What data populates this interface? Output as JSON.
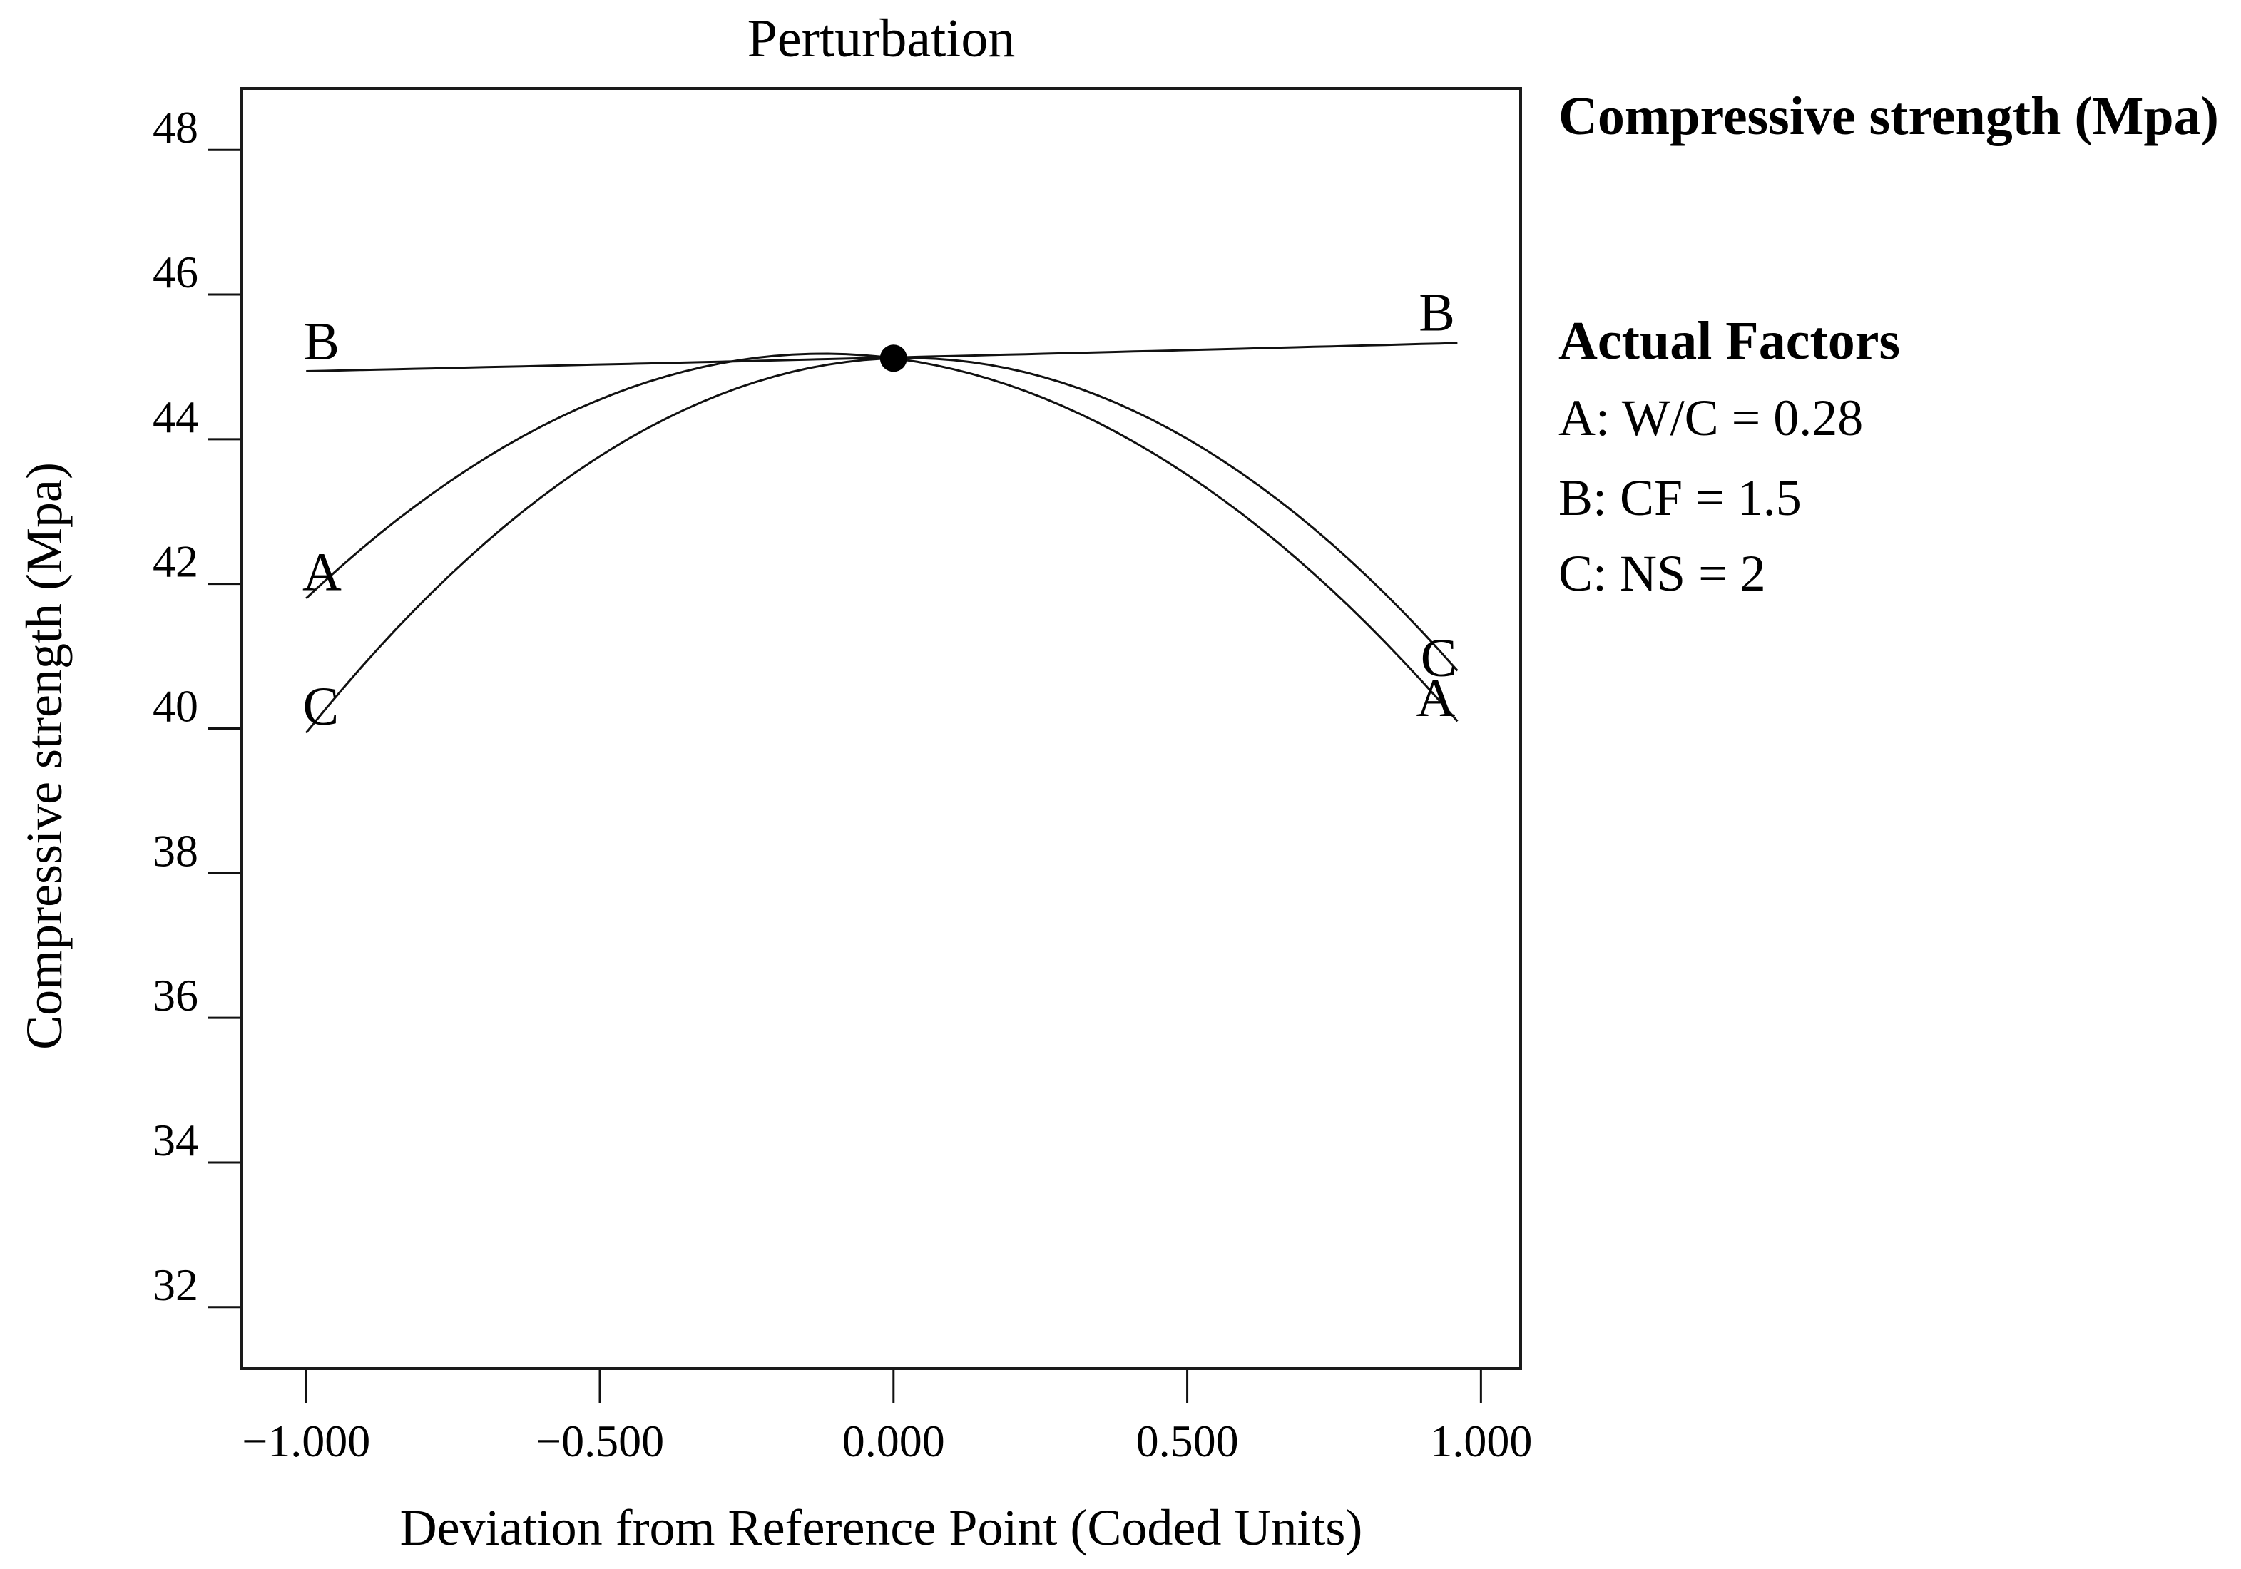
{
  "page": {
    "background": "#ffffff",
    "ink_color": "#111111"
  },
  "chart_data": {
    "type": "line",
    "title": "Perturbation",
    "xlabel": "Deviation from Reference Point (Coded Units)",
    "ylabel": "Compressive strength (Mpa)",
    "grid": false,
    "legend_position": "right",
    "xlim": [
      -1.112,
      1.07
    ],
    "ylim": [
      31.13,
      48.87
    ],
    "x_ticks": {
      "values": [
        -1.0,
        -0.5,
        0.0,
        0.5,
        1.0
      ],
      "labels": [
        "−1.000",
        "−0.500",
        "0.000",
        "0.500",
        "1.000"
      ]
    },
    "y_ticks": {
      "values": [
        32,
        34,
        36,
        38,
        40,
        42,
        44,
        46,
        48
      ],
      "labels": [
        "32",
        "34",
        "36",
        "38",
        "40",
        "42",
        "44",
        "46",
        "48"
      ]
    },
    "series": [
      {
        "name": "A",
        "points": [
          [
            -1.0,
            41.8
          ],
          [
            -0.5,
            44.55
          ],
          [
            0.0,
            45.12
          ],
          [
            0.5,
            43.51
          ],
          [
            0.96,
            40.1
          ]
        ],
        "label_left": {
          "x": -0.973,
          "y": 42.18
        },
        "label_right": {
          "x": 0.923,
          "y": 40.44
        }
      },
      {
        "name": "B",
        "points": [
          [
            -1.0,
            44.94
          ],
          [
            -0.5,
            45.03
          ],
          [
            0.0,
            45.13
          ],
          [
            0.5,
            45.23
          ],
          [
            0.96,
            45.33
          ]
        ],
        "label_left": {
          "x": -0.974,
          "y": 45.37
        },
        "label_right": {
          "x": 0.925,
          "y": 45.77
        }
      },
      {
        "name": "C",
        "points": [
          [
            -1.0,
            39.94
          ],
          [
            -0.5,
            43.76
          ],
          [
            0.0,
            45.12
          ],
          [
            0.5,
            44.01
          ],
          [
            0.96,
            40.8
          ]
        ],
        "label_left": {
          "x": -0.975,
          "y": 40.32
        },
        "label_right": {
          "x": 0.928,
          "y": 40.99
        }
      }
    ],
    "reference_point": {
      "x": 0.0,
      "y": 45.12
    }
  },
  "legend": {
    "response_label": "Compressive strength (Mpa)",
    "factors_header": "Actual Factors",
    "factors": [
      "A: W/C = 0.28",
      "B: CF = 1.5",
      "C: NS = 2"
    ]
  }
}
